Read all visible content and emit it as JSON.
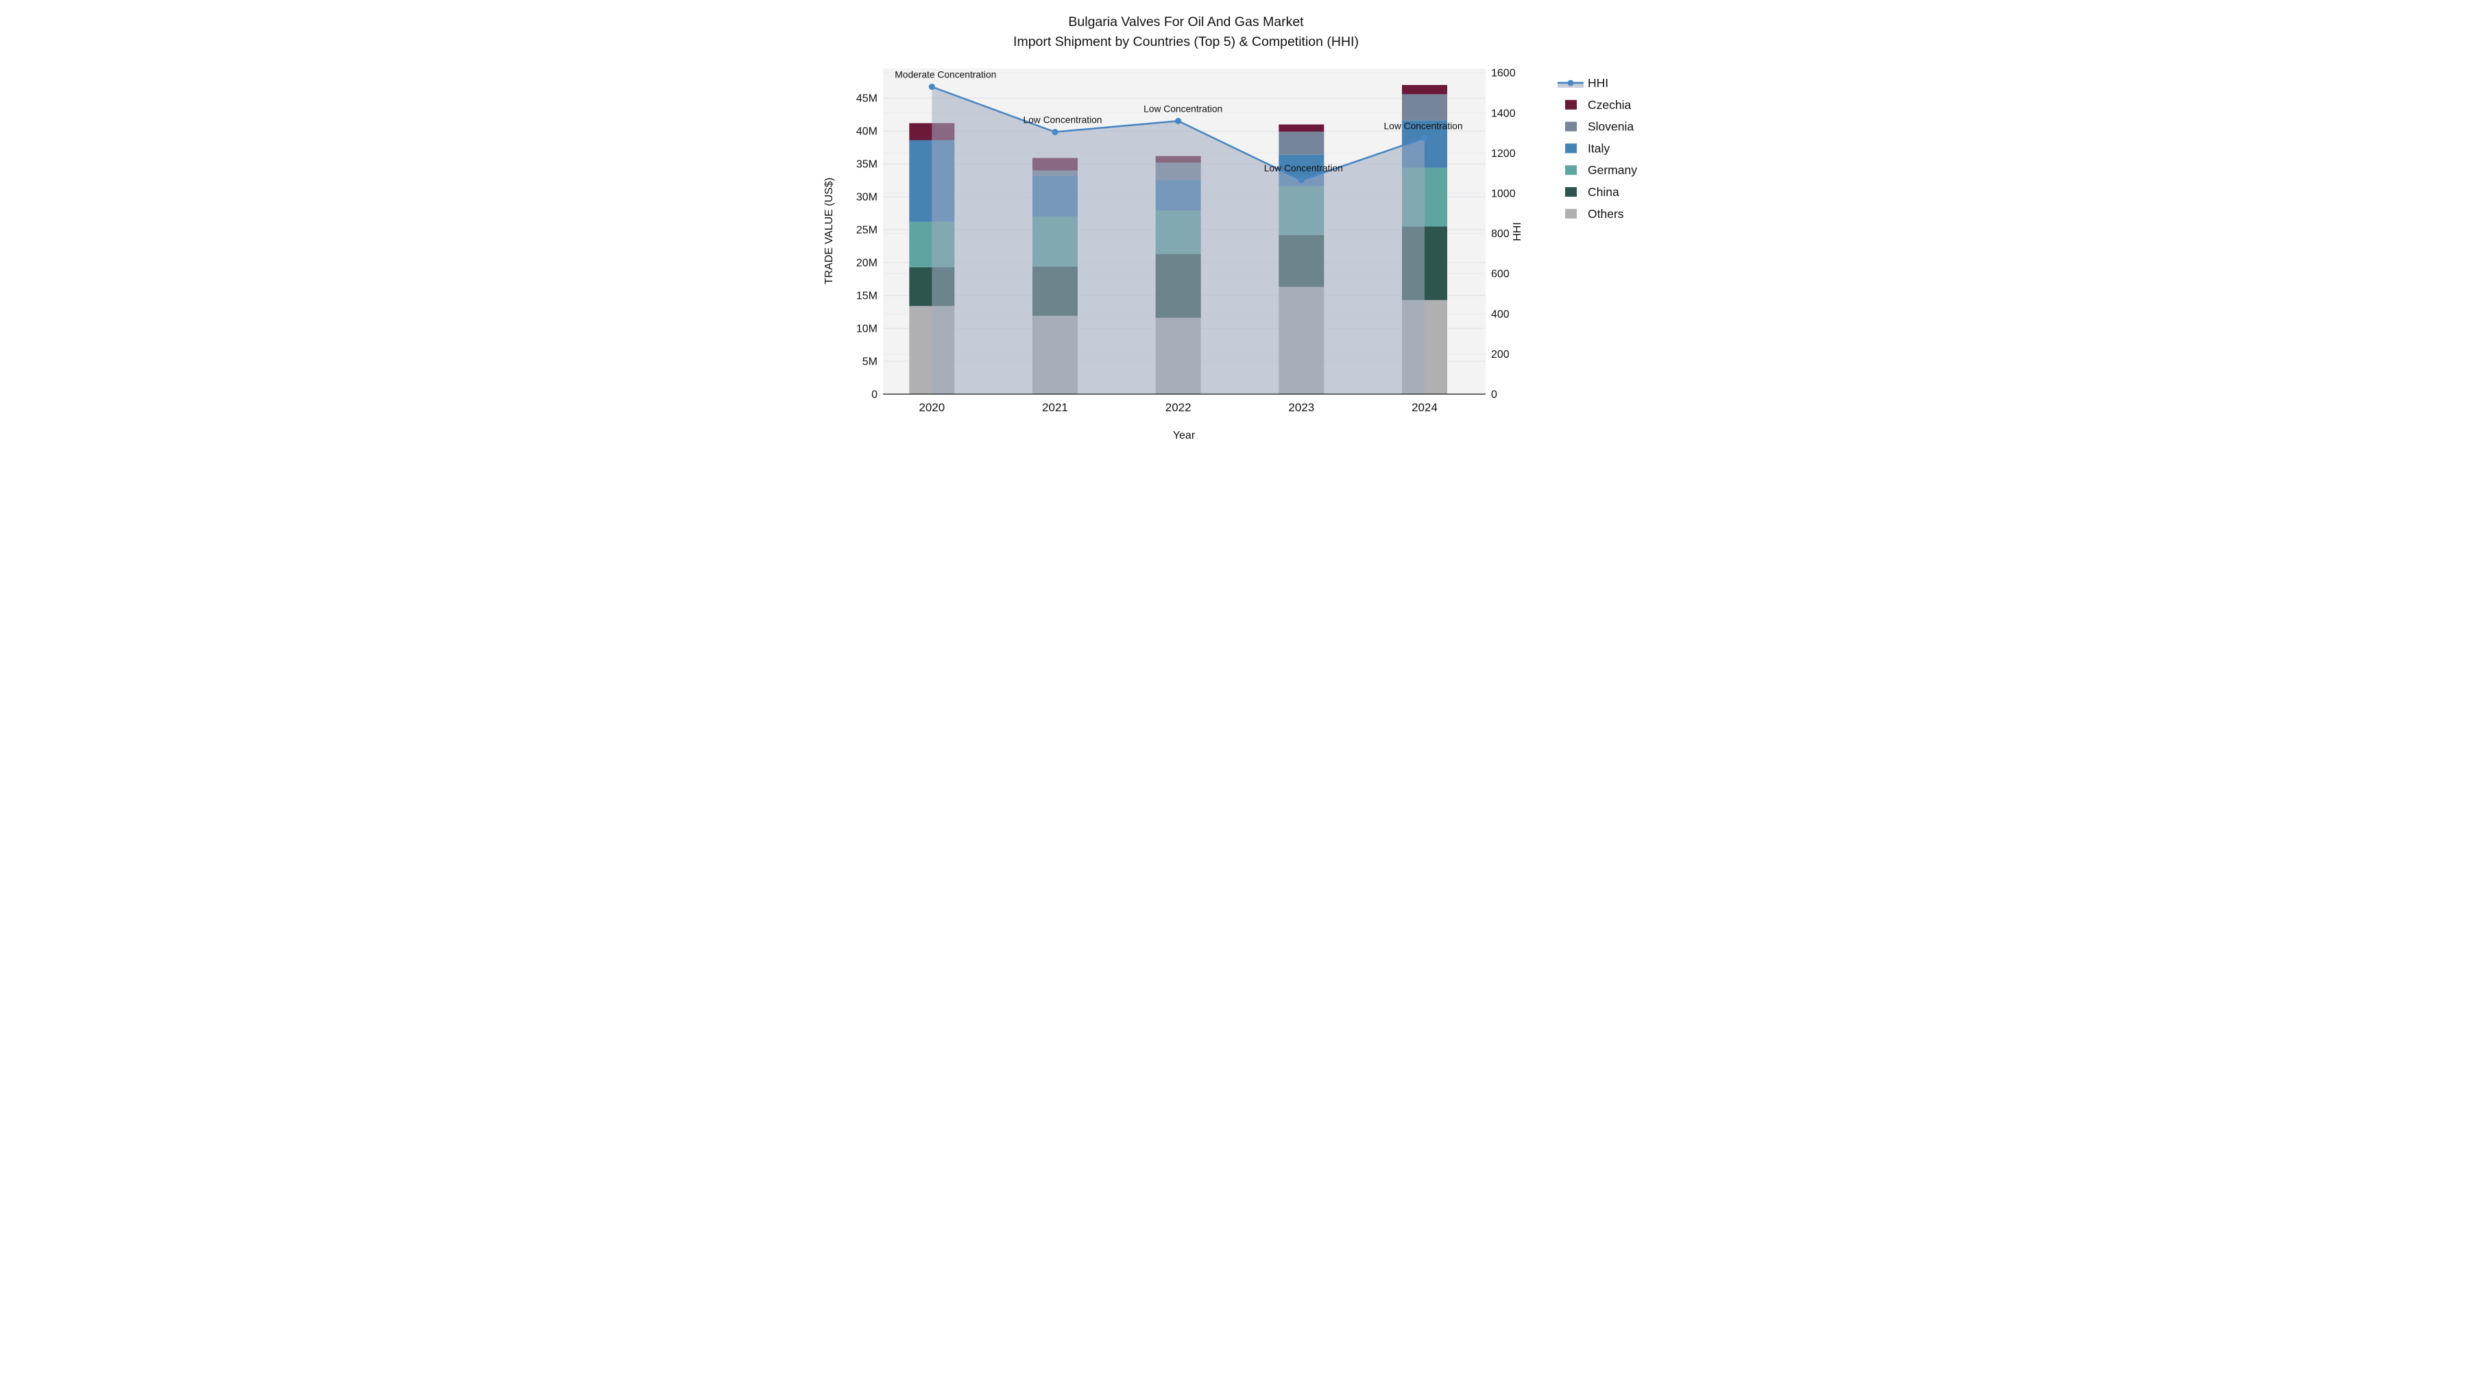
{
  "chart_data": {
    "type": "bar",
    "subtype": "stacked-bar-with-line-area-combo",
    "title_lines": [
      "Bulgaria Valves For Oil And Gas Market",
      "Import Shipment by Countries (Top 5) & Competition (HHI)"
    ],
    "xlabel": "Year",
    "ylabel_left": "TRADE VALUE (US$)",
    "ylabel_right": "HHI",
    "categories": [
      "2020",
      "2021",
      "2022",
      "2023",
      "2024"
    ],
    "series": [
      {
        "name": "Czechia",
        "color": "#6b1839",
        "values": [
          2.6,
          1.9,
          1.0,
          1.1,
          1.4
        ]
      },
      {
        "name": "Slovenia",
        "color": "#76859a",
        "values": [
          0.0,
          0.8,
          2.6,
          3.5,
          4.0
        ]
      },
      {
        "name": "Italy",
        "color": "#4682b4",
        "values": [
          12.4,
          6.2,
          4.7,
          4.8,
          7.2
        ]
      },
      {
        "name": "Germany",
        "color": "#5ea5a2",
        "values": [
          6.9,
          7.6,
          6.6,
          7.4,
          8.9
        ]
      },
      {
        "name": "China",
        "color": "#2e544e",
        "values": [
          5.9,
          7.5,
          9.7,
          7.9,
          11.2
        ]
      },
      {
        "name": "Others",
        "color": "#b0b0b2",
        "values": [
          13.4,
          11.9,
          11.6,
          16.3,
          14.3
        ]
      }
    ],
    "stack_order_bottom_to_top": [
      "Others",
      "China",
      "Germany",
      "Italy",
      "Slovenia",
      "Czechia"
    ],
    "bar_totals_musd": [
      41.2,
      35.9,
      36.2,
      41.0,
      47.0
    ],
    "hhi_line": {
      "name": "HHI",
      "values": [
        1530,
        1305,
        1360,
        1065,
        1275
      ],
      "line_color": "#4a87c3",
      "area_fill_color": "#a0acc0",
      "area_fill_opacity": 0.55
    },
    "annotations": [
      {
        "category": "2020",
        "text": "Moderate Concentration"
      },
      {
        "category": "2021",
        "text": "Low Concentration"
      },
      {
        "category": "2022",
        "text": "Low Concentration"
      },
      {
        "category": "2023",
        "text": "Low Concentration"
      },
      {
        "category": "2024",
        "text": "Low Concentration"
      }
    ],
    "left_axis": {
      "tick_labels": [
        "0",
        "5M",
        "10M",
        "15M",
        "20M",
        "25M",
        "30M",
        "35M",
        "40M",
        "45M"
      ],
      "tick_values": [
        0,
        5,
        10,
        15,
        20,
        25,
        30,
        35,
        40,
        45
      ],
      "range": [
        0,
        49.5
      ],
      "unit": "million US$"
    },
    "right_axis": {
      "tick_labels": [
        "0",
        "200",
        "400",
        "600",
        "800",
        "1000",
        "1200",
        "1400",
        "1600"
      ],
      "tick_values": [
        0,
        200,
        400,
        600,
        800,
        1000,
        1200,
        1400,
        1600
      ],
      "range": [
        0,
        1621
      ]
    },
    "legend": {
      "entries": [
        "HHI",
        "Czechia",
        "Slovenia",
        "Italy",
        "Germany",
        "China",
        "Others"
      ],
      "position": "right"
    },
    "grid": true,
    "plot_background": "#f3f3f4",
    "gridline_color": "#e3e3e7",
    "axis_line_color": "#3b3b3b"
  }
}
